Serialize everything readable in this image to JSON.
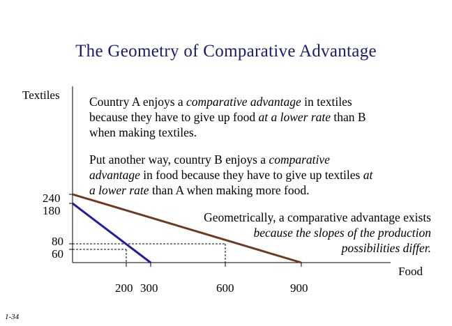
{
  "title": "The Geometry of Comparative Advantage",
  "axis": {
    "y_label": "Textiles",
    "x_label": "Food",
    "y_ticks": [
      "240",
      "180",
      "80",
      "60"
    ],
    "x_ticks": [
      "200",
      "300",
      "600",
      "900"
    ]
  },
  "text": {
    "p1_l1": "Country A enjoys a ",
    "p1_l1_em": "comparative advantage",
    "p1_l1_end": " in textiles",
    "p1_l2": "because they have to give up food ",
    "p1_l2_em": "at a lower rate",
    "p1_l2_end": " than B",
    "p1_l3": "when making textiles.",
    "p2_l1": "Put another way, country B enjoys a ",
    "p2_l1_em": "comparative",
    "p2_l2_em": "advantage",
    "p2_l2": " in food because they have to give up textiles ",
    "p2_l2_em2": "at",
    "p2_l3_em": "a lower rate",
    "p2_l3": " than A when making more food.",
    "p3_l1": "Geometrically, a comparative advantage exists",
    "p3_l2": "because the slopes of the production",
    "p3_l3": "possibilities differ."
  },
  "slide_number": "1-34",
  "colors": {
    "title": "#1a1a6e",
    "line_a": "#1f1f9e",
    "line_b": "#6b3a1f"
  },
  "chart_data": {
    "type": "line",
    "x_ticks": [
      200,
      300,
      600,
      900
    ],
    "y_ticks": [
      60,
      80,
      180,
      240
    ],
    "series": [
      {
        "points": [
          [
            0,
            180
          ],
          [
            300,
            0
          ]
        ],
        "color": "#1f1f9e"
      },
      {
        "points": [
          [
            0,
            240
          ],
          [
            900,
            0
          ]
        ],
        "color": "#6b3a1f"
      }
    ],
    "guides": [
      {
        "from": [
          0,
          80
        ],
        "to": [
          600,
          80
        ]
      },
      {
        "from": [
          0,
          60
        ],
        "to": [
          200,
          60
        ]
      },
      {
        "from": [
          200,
          60
        ],
        "to": [
          200,
          0
        ]
      },
      {
        "from": [
          600,
          80
        ],
        "to": [
          600,
          0
        ]
      }
    ]
  }
}
